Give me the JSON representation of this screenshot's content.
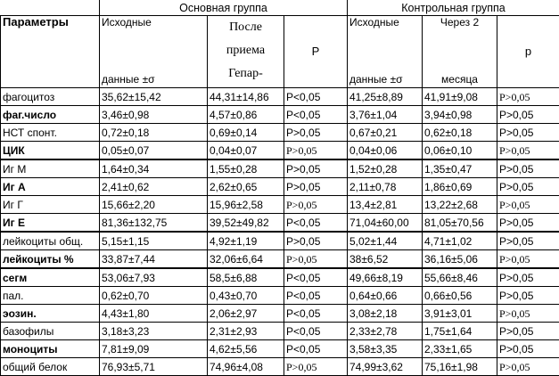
{
  "header": {
    "main_group": "Основная группа",
    "control_group": "Контрольная группа",
    "params": "Параметры",
    "initial_top": "Исходные",
    "initial_bottom": "данные ±σ",
    "after": [
      "После",
      "приема",
      "Гепар-"
    ],
    "p_main": "P",
    "ctrl_initial_top": "Исходные",
    "ctrl_initial_bottom": "данные ±σ",
    "after2_top": "Через 2",
    "after2_bottom": "месяца",
    "p_ctrl": "p"
  },
  "rows": [
    {
      "name": "фагоцитоз",
      "bold": false,
      "c1": "35,62±15,42",
      "c2": "44,31±14,86",
      "p1": "P<0,05",
      "c3": "41,25±8,89",
      "c4": "41,91±9,08",
      "p2": "P>0,05"
    },
    {
      "name": "фаг.число",
      "bold": true,
      "c1": "3,46±0,98",
      "c2": "4,57±0,86",
      "p1": "P<0,05",
      "c3": "3,76±1,04",
      "c4": "3,94±0,98",
      "p2": "P>0,05"
    },
    {
      "name": "НСТ спонт.",
      "bold": false,
      "c1": "0,72±0,18",
      "c2": "0,69±0,14",
      "p1": "P>0,05",
      "c3": "0,67±0,21",
      "c4": "0,62±0,18",
      "p2": "P>0,05"
    },
    {
      "name": "ЦИК",
      "bold": true,
      "c1": "0,05±0,07",
      "c2": "0,04±0,07",
      "p1": "P>0,05",
      "c3": "0,04±0,06",
      "c4": "0,06±0,10",
      "p2": "P>0,05"
    },
    {
      "name": "Иг М",
      "bold": false,
      "c1": "1,64±0,34",
      "c2": "1,55±0,28",
      "p1": "P>0,05",
      "c3": "1,52±0,28",
      "c4": "1,35±0,47",
      "p2": "P>0,05"
    },
    {
      "name": "Иг А",
      "bold": true,
      "c1": "2,41±0,62",
      "c2": "2,62±0,65",
      "p1": "P>0,05",
      "c3": "2,11±0,78",
      "c4": "1,86±0,69",
      "p2": "P>0,05"
    },
    {
      "name": "Иг Г",
      "bold": false,
      "c1": "15,66±2,20",
      "c2": "15,96±2,58",
      "p1": "P>0,05",
      "c3": "13,4±2,81",
      "c4": "13,22±2,68",
      "p2": "P>0,05"
    },
    {
      "name": "Иг Е",
      "bold": true,
      "c1": "81,36±132,75",
      "c2": "39,52±49,82",
      "p1": "P<0,05",
      "c3": "71,04±60,00",
      "c4": "81,05±70,56",
      "p2": "P>0,05"
    },
    {
      "name": "лейкоциты общ.",
      "bold": false,
      "c1": "5,15±1,15",
      "c2": "4,92±1,19",
      "p1": "P>0,05",
      "c3": "5,02±1,44",
      "c4": "4,71±1,02",
      "p2": "P>0,05"
    },
    {
      "name": "лейкоциты %",
      "bold": true,
      "c1": "33,87±7,44",
      "c2": "32,06±6,64",
      "p1": "P>0,05",
      "c3": "38±6,52",
      "c4": "36,16±5,06",
      "p2": "P>0,05"
    },
    {
      "name": "сегм",
      "bold": true,
      "c1": "53,06±7,93",
      "c2": "58,5±6,88",
      "p1": "P<0,05",
      "c3": "49,66±8,19",
      "c4": "55,66±8,46",
      "p2": "P>0,05"
    },
    {
      "name": "пал.",
      "bold": false,
      "c1": "0,62±0,70",
      "c2": "0,43±0,70",
      "p1": "P<0,05",
      "c3": "0,64±0,66",
      "c4": "0,66±0,56",
      "p2": "P>0,05"
    },
    {
      "name": "эозин.",
      "bold": true,
      "c1": "4,43±1,80",
      "c2": "2,06±2,97",
      "p1": "P<0,05",
      "c3": "3,08±2,18",
      "c4": "3,91±3,01",
      "p2": "P>0,05"
    },
    {
      "name": "базофилы",
      "bold": false,
      "c1": "3,18±3,23",
      "c2": "2,31±2,93",
      "p1": "P<0,05",
      "c3": "2,33±2,78",
      "c4": "1,75±1,64",
      "p2": "P>0,05"
    },
    {
      "name": "моноциты",
      "bold": true,
      "c1": "7,81±9,09",
      "c2": "4,62±5,56",
      "p1": "P<0,05",
      "c3": "3,58±3,35",
      "c4": "2,33±1,65",
      "p2": "P>0,05"
    },
    {
      "name": "общий белок",
      "bold": false,
      "c1": "76,93±5,71",
      "c2": "74,96±4,08",
      "p1": "P>0,05",
      "c3": "74,99±3,62",
      "c4": "75,16±1,98",
      "p2": "P>0,05"
    }
  ]
}
